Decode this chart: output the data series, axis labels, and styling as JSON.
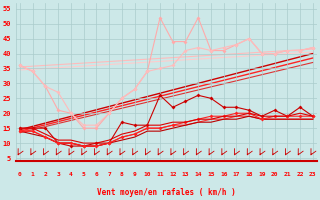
{
  "x": [
    0,
    1,
    2,
    3,
    4,
    5,
    6,
    7,
    8,
    9,
    10,
    11,
    12,
    13,
    14,
    15,
    16,
    17,
    18,
    19,
    20,
    21,
    22,
    23
  ],
  "series": [
    {
      "y": [
        36,
        34,
        29,
        21,
        20,
        15,
        15,
        20,
        25,
        28,
        34,
        52,
        44,
        44,
        52,
        41,
        41,
        43,
        45,
        40,
        40,
        41,
        41,
        42
      ],
      "color": "#ffaaaa",
      "marker": "D",
      "ms": 2.0,
      "lw": 0.8,
      "zorder": 3
    },
    {
      "y": [
        36,
        34,
        29,
        27,
        20,
        16,
        16,
        20,
        25,
        28,
        34,
        35,
        36,
        41,
        42,
        41,
        42,
        43,
        45,
        40,
        40,
        41,
        41,
        42
      ],
      "color": "#ffbbbb",
      "marker": "D",
      "ms": 2.0,
      "lw": 0.8,
      "zorder": 3
    },
    {
      "y": [
        15,
        15,
        15,
        10,
        9,
        9,
        10,
        10,
        17,
        16,
        16,
        26,
        22,
        24,
        26,
        25,
        22,
        22,
        21,
        19,
        21,
        19,
        22,
        19
      ],
      "color": "#cc0000",
      "marker": "D",
      "ms": 2.0,
      "lw": 0.8,
      "zorder": 4
    },
    {
      "y": [
        14,
        14,
        12,
        10,
        10,
        9,
        9,
        10,
        12,
        13,
        15,
        15,
        16,
        17,
        18,
        19,
        19,
        20,
        20,
        18,
        19,
        19,
        19,
        19
      ],
      "color": "#ff2222",
      "marker": "D",
      "ms": 2.0,
      "lw": 0.8,
      "zorder": 4
    },
    {
      "y": [
        15,
        15,
        13,
        11,
        11,
        10,
        10,
        11,
        13,
        14,
        16,
        16,
        17,
        17,
        18,
        18,
        19,
        19,
        20,
        19,
        19,
        19,
        20,
        19
      ],
      "color": "#dd0000",
      "marker": null,
      "ms": 0,
      "lw": 0.8,
      "zorder": 4
    },
    {
      "y": [
        14,
        14,
        12,
        10,
        10,
        9,
        9,
        10,
        12,
        13,
        15,
        15,
        16,
        16,
        17,
        18,
        18,
        19,
        19,
        18,
        18,
        18,
        18,
        18
      ],
      "color": "#ff3333",
      "marker": null,
      "ms": 0,
      "lw": 0.8,
      "zorder": 3
    },
    {
      "y": [
        14,
        13,
        12,
        10,
        10,
        9,
        9,
        10,
        11,
        12,
        14,
        14,
        15,
        16,
        17,
        17,
        18,
        18,
        19,
        18,
        18,
        18,
        18,
        18
      ],
      "color": "#bb0000",
      "marker": null,
      "ms": 0,
      "lw": 0.8,
      "zorder": 3
    }
  ],
  "trend_lines": [
    {
      "x0": 0,
      "y0": 14.5,
      "x1": 23,
      "y1": 40.0,
      "color": "#cc0000",
      "lw": 1.0
    },
    {
      "x0": 0,
      "y0": 14.0,
      "x1": 23,
      "y1": 38.5,
      "color": "#ff2222",
      "lw": 1.0
    },
    {
      "x0": 0,
      "y0": 13.5,
      "x1": 23,
      "y1": 37.0,
      "color": "#dd3333",
      "lw": 0.8
    },
    {
      "x0": 0,
      "y0": 35.5,
      "x1": 23,
      "y1": 41.5,
      "color": "#ffbbbb",
      "lw": 0.8
    },
    {
      "x0": 0,
      "y0": 34.5,
      "x1": 23,
      "y1": 40.5,
      "color": "#ffcccc",
      "lw": 0.8
    }
  ],
  "xlabel": "Vent moyen/en rafales ( km/h )",
  "ylabel_ticks": [
    5,
    10,
    15,
    20,
    25,
    30,
    35,
    40,
    45,
    50,
    55
  ],
  "ylim": [
    4,
    57
  ],
  "xlim": [
    -0.3,
    23.3
  ],
  "bg_color": "#cce8e8",
  "grid_color": "#aacccc",
  "tick_color": "#ff0000",
  "label_color": "#ff0000",
  "arrow_color": "#cc0000"
}
